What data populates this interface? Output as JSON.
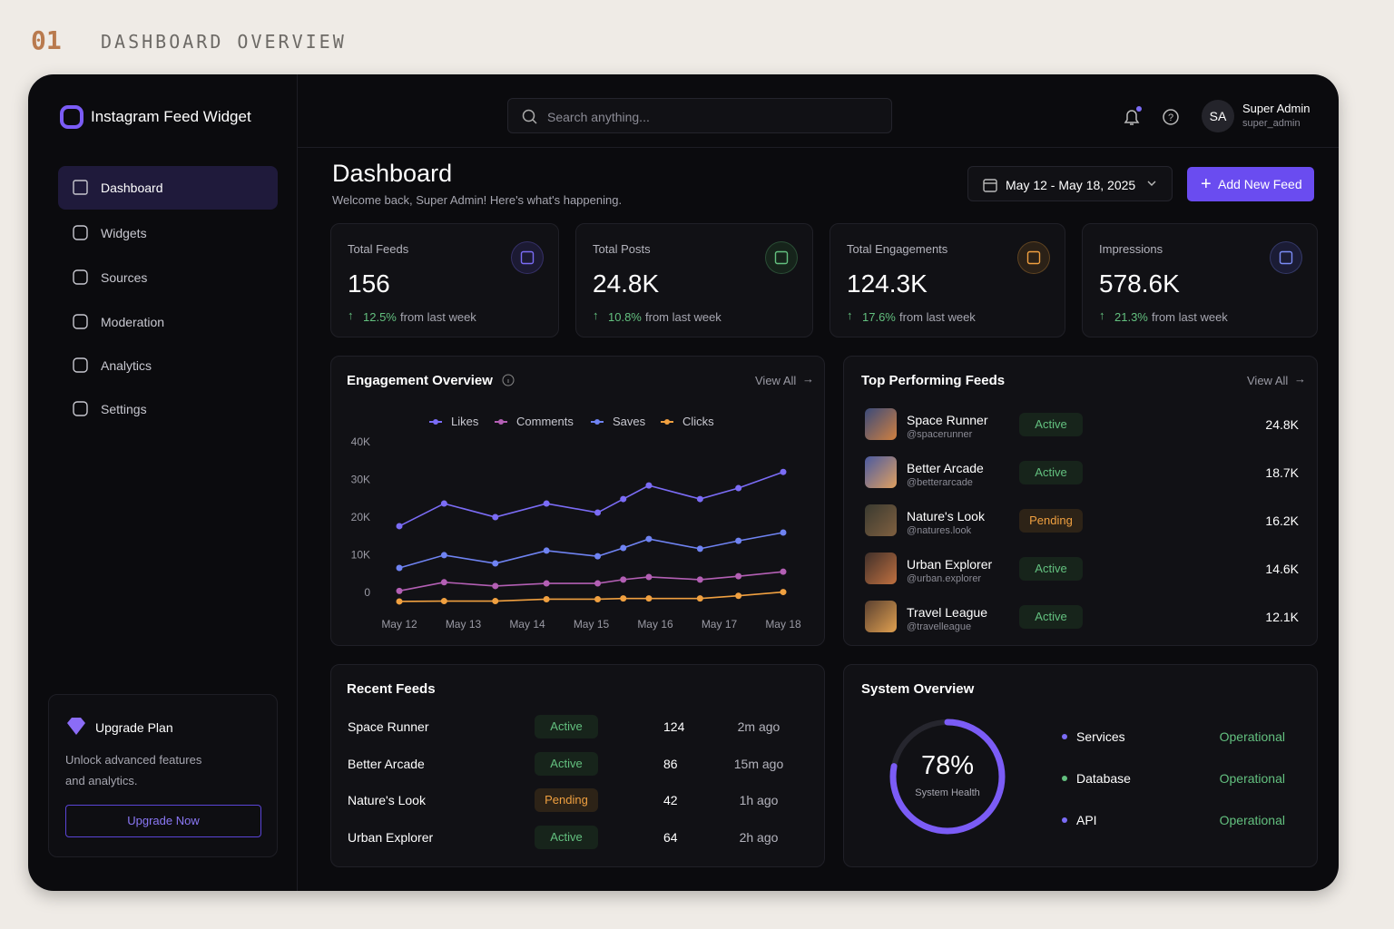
{
  "header": {
    "number": "01",
    "title": "DASHBOARD OVERVIEW"
  },
  "sidebar": {
    "brand": "Instagram Feed Widget",
    "nav": [
      "Dashboard",
      "Widgets",
      "Sources",
      "Moderation",
      "Analytics",
      "Settings"
    ],
    "upgrade": {
      "title": "Upgrade Plan",
      "text": "Unlock advanced features and analytics.",
      "button": "Upgrade Now"
    }
  },
  "topbar": {
    "search": "Search anything...",
    "user": {
      "initials": "SA",
      "name": "Super Admin",
      "handle": "super_admin"
    }
  },
  "page": {
    "title": "Dashboard",
    "subtitle": "Welcome back, Super Admin! Here's what's happening.",
    "date_range": "May 12 - May 18, 2025",
    "add_button": "Add New Feed"
  },
  "stats": [
    {
      "label": "Total Feeds",
      "value": "156",
      "change": "12.5%",
      "change_text": "from last week"
    },
    {
      "label": "Total Posts",
      "value": "24.8K",
      "change": "10.8%",
      "change_text": "from last week"
    },
    {
      "label": "Total Engagements",
      "value": "124.3K",
      "change": "17.6%",
      "change_text": "from last week"
    },
    {
      "label": "Impressions",
      "value": "578.6K",
      "change": "21.3%",
      "change_text": "from last week"
    }
  ],
  "engagement": {
    "title": "Engagement Overview",
    "view_all": "View All",
    "chart": {
      "type": "line",
      "x": [
        0,
        0.7,
        1.5,
        2.3,
        3.1,
        3.5,
        3.9,
        4.7,
        5.3,
        6
      ],
      "xlim": [
        0,
        6
      ],
      "xticks": [
        {
          "value": 0,
          "label": "May 12"
        },
        {
          "value": 1,
          "label": "May 13"
        },
        {
          "value": 2,
          "label": "May 14"
        },
        {
          "value": 3,
          "label": "May 15"
        },
        {
          "value": 4,
          "label": "May 16"
        },
        {
          "value": 5,
          "label": "May 17"
        },
        {
          "value": 6,
          "label": "May 18"
        }
      ],
      "ylim": [
        0,
        40000
      ],
      "yticks": [
        0,
        {
          "value": 10000,
          "label": "10K"
        },
        {
          "value": 20000,
          "label": "20K"
        },
        {
          "value": 30000,
          "label": "30K"
        },
        {
          "value": 40000,
          "label": "40K"
        }
      ],
      "series": [
        {
          "name": "Likes",
          "color": "#7b6cf6",
          "values": [
            17600,
            23600,
            20000,
            23600,
            21200,
            24800,
            28400,
            24800,
            27700,
            32000
          ]
        },
        {
          "name": "Comments",
          "color": "#b35fb4",
          "values": [
            400,
            2700,
            1700,
            2400,
            2400,
            3400,
            4100,
            3400,
            4300,
            5500
          ]
        },
        {
          "name": "Saves",
          "color": "#6f83f2",
          "values": [
            6500,
            9900,
            7700,
            11100,
            9600,
            11800,
            14200,
            11600,
            13700,
            15900
          ]
        },
        {
          "name": "Clicks",
          "color": "#f0a040",
          "values": [
            -2400,
            -2300,
            -2300,
            -1800,
            -1800,
            -1600,
            -1600,
            -1600,
            -900,
            100
          ]
        }
      ]
    }
  },
  "top_feeds": {
    "title": "Top Performing Feeds",
    "view_all": "View All",
    "rows": [
      {
        "name": "Space Runner",
        "handle": "@spacerunner",
        "status": "Active",
        "value": "24.8K"
      },
      {
        "name": "Better Arcade",
        "handle": "@betterarcade",
        "status": "Active",
        "value": "18.7K"
      },
      {
        "name": "Nature's Look",
        "handle": "@natures.look",
        "status": "Pending",
        "value": "16.2K"
      },
      {
        "name": "Urban Explorer",
        "handle": "@urban.explorer",
        "status": "Active",
        "value": "14.6K"
      },
      {
        "name": "Travel League",
        "handle": "@travelleague",
        "status": "Active",
        "value": "12.1K"
      }
    ]
  },
  "recent_feeds": {
    "title": "Recent Feeds",
    "rows": [
      [
        "Space Runner",
        "Active",
        "124",
        "2m ago"
      ],
      [
        "Better Arcade",
        "Active",
        "86",
        "15m ago"
      ],
      [
        "Nature's Look",
        "Pending",
        "42",
        "1h ago"
      ],
      [
        "Urban Explorer",
        "Active",
        "64",
        "2h ago"
      ]
    ]
  },
  "system": {
    "title": "System Overview",
    "health": {
      "value": 78,
      "label": "78%"
    },
    "health_label": "System Health",
    "services": [
      {
        "name": "Services",
        "status": "Operational"
      },
      {
        "name": "Database",
        "status": "Operational"
      },
      {
        "name": "API",
        "status": "Operational"
      }
    ]
  }
}
